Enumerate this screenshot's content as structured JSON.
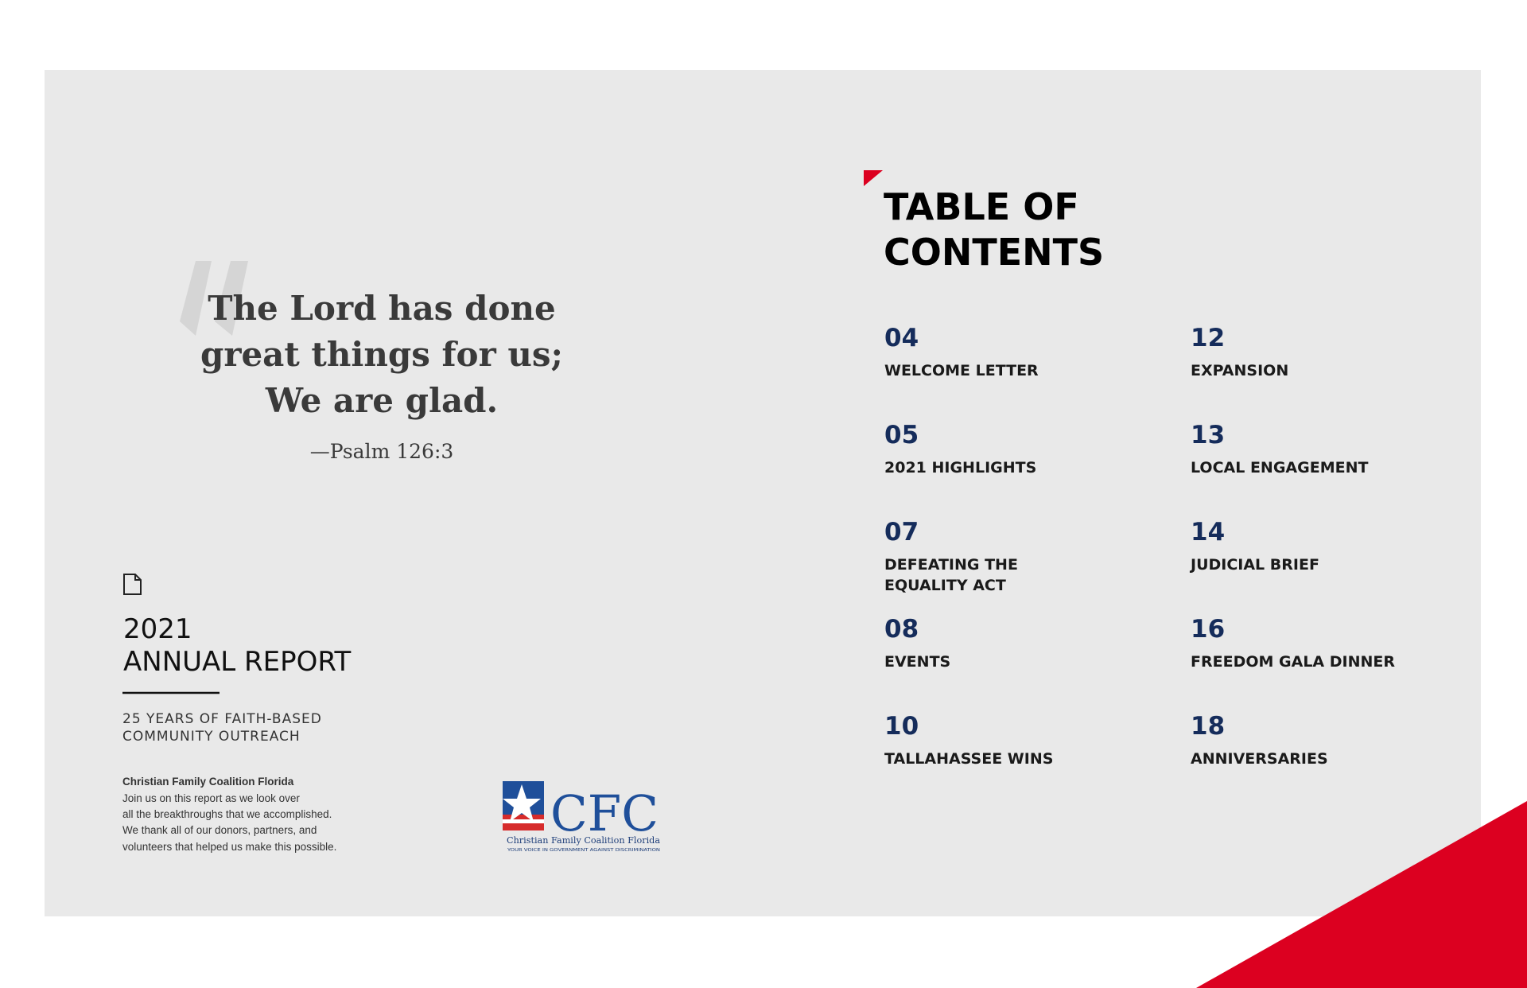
{
  "quote": {
    "lines": [
      "The Lord has done",
      "great things for us;",
      "We are glad."
    ],
    "citation": "—Psalm 126:3"
  },
  "report": {
    "year": "2021",
    "title": "ANNUAL REPORT",
    "subtitle_lines": [
      "25 YEARS OF FAITH-BASED",
      "COMMUNITY OUTREACH"
    ],
    "org_name": "Christian Family Coalition Florida",
    "body_lines": [
      "Join us on this report as we look over",
      "all the breakthroughs that we accomplished.",
      "We thank all of our donors, partners, and",
      "volunteers that helped us make this possible."
    ]
  },
  "logo": {
    "mark": "CFC",
    "name": "Christian Family Coalition Florida",
    "tagline": "YOUR VOICE IN GOVERNMENT AGAINST DISCRIMINATION"
  },
  "toc": {
    "title_lines": [
      "TABLE OF",
      "CONTENTS"
    ],
    "items": [
      {
        "number": "04",
        "label_lines": [
          "WELCOME LETTER"
        ]
      },
      {
        "number": "05",
        "label_lines": [
          "2021 HIGHLIGHTS"
        ]
      },
      {
        "number": "07",
        "label_lines": [
          "DEFEATING THE",
          "EQUALITY ACT"
        ]
      },
      {
        "number": "08",
        "label_lines": [
          "EVENTS"
        ]
      },
      {
        "number": "10",
        "label_lines": [
          "TALLAHASSEE WINS"
        ]
      },
      {
        "number": "12",
        "label_lines": [
          "EXPANSION"
        ]
      },
      {
        "number": "13",
        "label_lines": [
          "LOCAL ENGAGEMENT"
        ]
      },
      {
        "number": "14",
        "label_lines": [
          "JUDICIAL BRIEF"
        ]
      },
      {
        "number": "16",
        "label_lines": [
          "FREEDOM GALA DINNER"
        ]
      },
      {
        "number": "18",
        "label_lines": [
          "ANNIVERSARIES"
        ]
      }
    ]
  }
}
